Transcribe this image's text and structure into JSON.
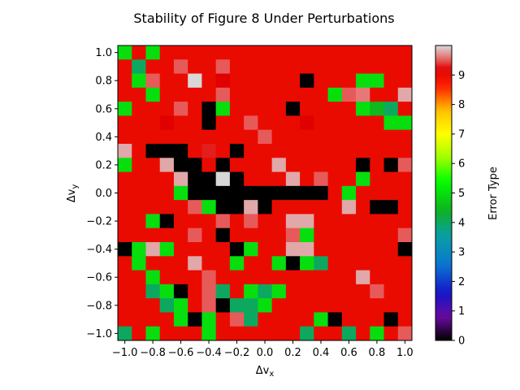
{
  "chart_data": {
    "type": "heatmap",
    "title": "Stability of Figure 8 Under Perturbations",
    "xlabel": "Δv",
    "xlabel_sub": "x",
    "ylabel": "Δv",
    "ylabel_sub": "y",
    "colorbar_label": "Error Type",
    "xlim": [
      -1.05,
      1.05
    ],
    "ylim": [
      -1.05,
      1.05
    ],
    "clim": [
      0,
      10
    ],
    "x_ticks": [
      -1.0,
      -0.8,
      -0.6,
      -0.4,
      -0.2,
      0.0,
      0.2,
      0.4,
      0.6,
      0.8,
      1.0
    ],
    "x_tick_labels": [
      "−1.0",
      "−0.8",
      "−0.6",
      "−0.4",
      "−0.2",
      "0.0",
      "0.2",
      "0.4",
      "0.6",
      "0.8",
      "1.0"
    ],
    "y_ticks": [
      1.0,
      0.8,
      0.6,
      0.4,
      0.2,
      0.0,
      -0.2,
      -0.4,
      -0.6,
      -0.8,
      -1.0
    ],
    "y_tick_labels": [
      "1.0",
      "0.8",
      "0.6",
      "0.4",
      "0.2",
      "0.0",
      "−0.2",
      "−0.4",
      "−0.6",
      "−0.8",
      "−1.0"
    ],
    "colorbar_ticks": [
      0,
      1,
      2,
      3,
      4,
      5,
      6,
      7,
      8,
      9
    ],
    "colorbar_tick_labels": [
      "0",
      "1",
      "2",
      "3",
      "4",
      "5",
      "6",
      "7",
      "8",
      "9"
    ],
    "colormap_stops": [
      [
        0.0,
        "#000000"
      ],
      [
        0.08,
        "#6a0aa0"
      ],
      [
        0.16,
        "#1414c8"
      ],
      [
        0.26,
        "#0a78d0"
      ],
      [
        0.36,
        "#0aa0a0"
      ],
      [
        0.44,
        "#10b020"
      ],
      [
        0.54,
        "#00ff00"
      ],
      [
        0.62,
        "#a0ff00"
      ],
      [
        0.7,
        "#ffff00"
      ],
      [
        0.78,
        "#ffc000"
      ],
      [
        0.86,
        "#ff2000"
      ],
      [
        0.92,
        "#e00000"
      ],
      [
        0.96,
        "#e87878"
      ],
      [
        1.0,
        "#d8d8d8"
      ]
    ],
    "x_values": [
      -1.0,
      -0.9,
      -0.8,
      -0.7,
      -0.6,
      -0.5,
      -0.4,
      -0.3,
      -0.2,
      -0.1,
      0.0,
      0.1,
      0.2,
      0.3,
      0.4,
      0.5,
      0.6,
      0.7,
      0.8,
      0.9,
      1.0
    ],
    "y_values": [
      1.0,
      0.9,
      0.8,
      0.7,
      0.6,
      0.5,
      0.4,
      0.3,
      0.2,
      0.1,
      0.0,
      -0.1,
      -0.2,
      -0.3,
      -0.4,
      -0.5,
      -0.6,
      -0.7,
      -0.8,
      -0.9,
      -1.0
    ],
    "values": [
      [
        5,
        9,
        5,
        9,
        9,
        9,
        9,
        9,
        9,
        9,
        9,
        9,
        9,
        9,
        9,
        9,
        9,
        9,
        9,
        9,
        9
      ],
      [
        9,
        4,
        9,
        9,
        9.5,
        9,
        9,
        9.5,
        9,
        9,
        9,
        9,
        9,
        9,
        9,
        9,
        9,
        9,
        9,
        9,
        9
      ],
      [
        9,
        5,
        9.5,
        9,
        9,
        10,
        9,
        9.2,
        9,
        9,
        9,
        9,
        9,
        0,
        9,
        9,
        9,
        5,
        5,
        9,
        9
      ],
      [
        9,
        9,
        5,
        9,
        9,
        9,
        9,
        9.5,
        9,
        9,
        9,
        9,
        9,
        9,
        9,
        5,
        9.5,
        9.6,
        9,
        9,
        9.8
      ],
      [
        5,
        9,
        9,
        9,
        9.5,
        9,
        0,
        5,
        9,
        9,
        9,
        9,
        0,
        9,
        9,
        9,
        9,
        5,
        4.5,
        4,
        9
      ],
      [
        9,
        9,
        9,
        9.2,
        9,
        9,
        0,
        9,
        9,
        9.5,
        9,
        9,
        9,
        9.2,
        9,
        9,
        9,
        9,
        9,
        5,
        5
      ],
      [
        9,
        9,
        9,
        9,
        9,
        9,
        9,
        9,
        9,
        9,
        9.5,
        9,
        9,
        9,
        9,
        9,
        9,
        9,
        9,
        9,
        9
      ],
      [
        9.8,
        9,
        0,
        0,
        0,
        9,
        9.3,
        9,
        0,
        9,
        9,
        9,
        9,
        9,
        9,
        9,
        9,
        9,
        9,
        9,
        9
      ],
      [
        5,
        9,
        9,
        9.8,
        0,
        0,
        9,
        0,
        9,
        9,
        9,
        9.8,
        9,
        9,
        9,
        9,
        9,
        0,
        9,
        0,
        9.5
      ],
      [
        9,
        9,
        9,
        9,
        9.8,
        0,
        0,
        10,
        0,
        9,
        9,
        9,
        9.8,
        9,
        9.5,
        9,
        9,
        5,
        9,
        9,
        9
      ],
      [
        9,
        9,
        9,
        9,
        5,
        0,
        0,
        0,
        0,
        0,
        0,
        0,
        0,
        0,
        0,
        9,
        5,
        9,
        9,
        9,
        9
      ],
      [
        9,
        9,
        9,
        9,
        9,
        9.5,
        5,
        0,
        0,
        9.8,
        0,
        9,
        9,
        9,
        9,
        9,
        9.8,
        9,
        0,
        0,
        9
      ],
      [
        9,
        9,
        5,
        0,
        9,
        9,
        9,
        9.5,
        9,
        9.5,
        9,
        9,
        9.8,
        9.8,
        9,
        9,
        9,
        9,
        9,
        9,
        9
      ],
      [
        9,
        9,
        9,
        9,
        9,
        9.5,
        9,
        0,
        9,
        9,
        9,
        9,
        9.5,
        5,
        9,
        9,
        9,
        9,
        9,
        9,
        9.5
      ],
      [
        0,
        5,
        9.8,
        5,
        9,
        9,
        9,
        9,
        0,
        5,
        9,
        9,
        9.8,
        9.8,
        9,
        9,
        9,
        9,
        9,
        9,
        0
      ],
      [
        9,
        5,
        9,
        9,
        9,
        9.8,
        9,
        9,
        5,
        9,
        9,
        5,
        0,
        5,
        4,
        9,
        9,
        9,
        9,
        9,
        9
      ],
      [
        9,
        9,
        5,
        9,
        9,
        9,
        9.5,
        9,
        9,
        9,
        9,
        9,
        9,
        9,
        9,
        9,
        9,
        9.8,
        9,
        9,
        9
      ],
      [
        9,
        9,
        4,
        5,
        0,
        9,
        9.5,
        4,
        9,
        5,
        4,
        5,
        9,
        9,
        9,
        9,
        9,
        9,
        9.5,
        9,
        9
      ],
      [
        9,
        9,
        9,
        4,
        5,
        9,
        9.5,
        0,
        4,
        4,
        5,
        9,
        9,
        9,
        9,
        9,
        9,
        9,
        9,
        9,
        9
      ],
      [
        9,
        9,
        9,
        9,
        5,
        0,
        5,
        9,
        9.5,
        4,
        9,
        9,
        9,
        9,
        5,
        0,
        9,
        9,
        9,
        0,
        9
      ],
      [
        4,
        9,
        5,
        9,
        9,
        9,
        5,
        9,
        9,
        9,
        9,
        9,
        9,
        4,
        9,
        9,
        4,
        9,
        5,
        9,
        9.5
      ]
    ]
  }
}
